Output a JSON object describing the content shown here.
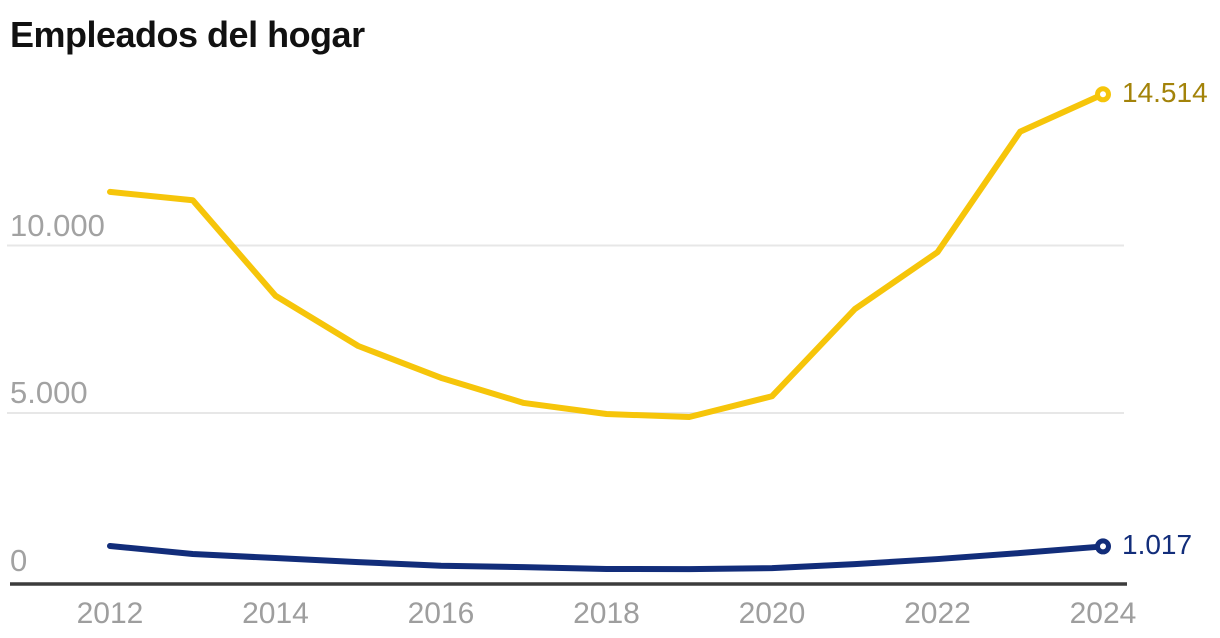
{
  "title": "Empleados del hogar",
  "colors": {
    "series_yellow": "#f6c50a",
    "series_yellow_label": "#a3830a",
    "series_navy": "#122d7a",
    "tick_text": "#9e9e9e",
    "gridline": "#e7e7e7",
    "axis_line": "#3c3c3c",
    "title_text": "#111111",
    "marker_fill": "#ffffff"
  },
  "chart_data": {
    "type": "line",
    "title": "Empleados del hogar",
    "xlabel": "",
    "ylabel": "",
    "x": [
      2012,
      2013,
      2014,
      2015,
      2016,
      2017,
      2018,
      2019,
      2020,
      2021,
      2022,
      2023,
      2024
    ],
    "series": [
      {
        "id": "serie-amarilla",
        "color": "#f6c50a",
        "label_color": "#a3830a",
        "end_label": "14.514",
        "end_value": 14514,
        "values": [
          11600,
          11350,
          8500,
          7000,
          6050,
          5300,
          4970,
          4880,
          5500,
          8100,
          9800,
          13400,
          14514
        ]
      },
      {
        "id": "serie-azul",
        "color": "#122d7a",
        "label_color": "#122d7a",
        "end_label": "1.017",
        "end_value": 1017,
        "values": [
          1030,
          790,
          670,
          550,
          440,
          400,
          345,
          340,
          370,
          490,
          640,
          820,
          1017
        ]
      }
    ],
    "y_ticks": [
      {
        "value": 0,
        "label": "0"
      },
      {
        "value": 5000,
        "label": "5.000"
      },
      {
        "value": 10000,
        "label": "10.000"
      }
    ],
    "x_ticks": [
      {
        "value": 2012,
        "label": "2012"
      },
      {
        "value": 2014,
        "label": "2014"
      },
      {
        "value": 2016,
        "label": "2016"
      },
      {
        "value": 2018,
        "label": "2018"
      },
      {
        "value": 2020,
        "label": "2020"
      },
      {
        "value": 2022,
        "label": "2022"
      },
      {
        "value": 2024,
        "label": "2024"
      }
    ],
    "ylim": [
      0,
      14700
    ],
    "xlim": [
      2012,
      2024
    ],
    "grid": "horizontal",
    "legend": "none"
  }
}
